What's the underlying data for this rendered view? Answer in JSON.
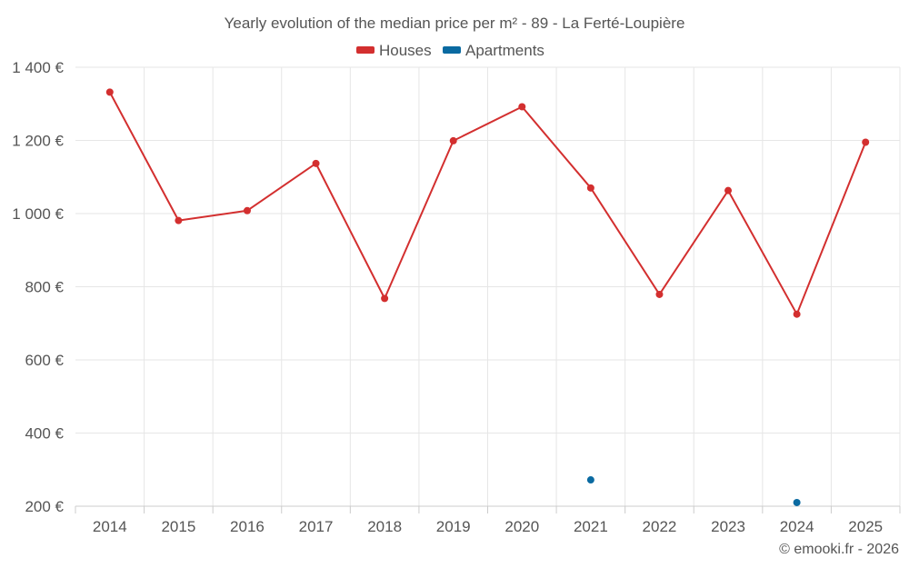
{
  "chart_data": {
    "type": "line",
    "title": "Yearly evolution of the median price per m² - 89 - La Ferté-Loupière",
    "categories": [
      "2014",
      "2015",
      "2016",
      "2017",
      "2018",
      "2019",
      "2020",
      "2021",
      "2022",
      "2023",
      "2024",
      "2025"
    ],
    "series": [
      {
        "name": "Houses",
        "color": "#d32f2f",
        "values": [
          1332,
          981,
          1008,
          1137,
          768,
          1199,
          1292,
          1070,
          779,
          1063,
          725,
          1195
        ]
      },
      {
        "name": "Apartments",
        "color": "#0a6aa1",
        "values": [
          null,
          null,
          null,
          null,
          null,
          null,
          null,
          272,
          null,
          null,
          210,
          null
        ]
      }
    ],
    "ylim": [
      200,
      1400
    ],
    "yticks": [
      200,
      400,
      600,
      800,
      1000,
      1200,
      1400
    ],
    "ytick_labels": [
      "200 €",
      "400 €",
      "600 €",
      "800 €",
      "1 000 €",
      "1 200 €",
      "1 400 €"
    ],
    "legend_position": "top-center",
    "grid": true
  },
  "credit": "© emooki.fr - 2026"
}
